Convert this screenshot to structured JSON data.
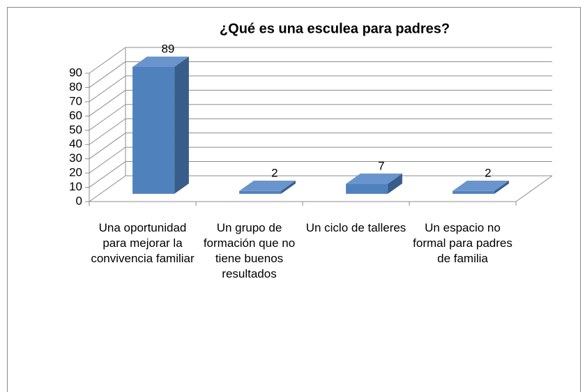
{
  "chart_data": {
    "type": "bar3d",
    "title": "¿Qué es una esculea para padres?",
    "categories": [
      "Una oportunidad para mejorar la convivencia familiar",
      "Un grupo de formación que no tiene buenos resultados",
      "Un ciclo de talleres",
      "Un espacio no formal para padres de familia"
    ],
    "values": [
      89,
      2,
      7,
      2
    ],
    "color": "#4f81bd",
    "ylim": [
      0,
      90
    ],
    "yticks": [
      0,
      10,
      20,
      30,
      40,
      50,
      60,
      70,
      80,
      90
    ],
    "grid": true
  }
}
